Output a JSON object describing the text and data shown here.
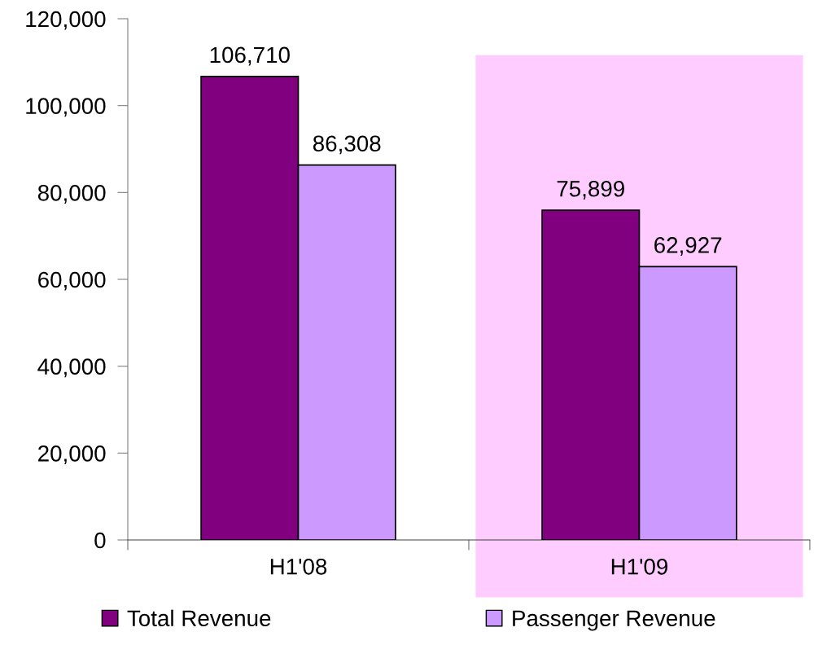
{
  "chart_data": {
    "type": "bar",
    "categories": [
      "H1'08",
      "H1'09"
    ],
    "series": [
      {
        "name": "Total Revenue",
        "color": "#800080",
        "values": [
          106710,
          75899
        ],
        "value_labels": [
          "106,710",
          "75,899"
        ]
      },
      {
        "name": "Passenger Revenue",
        "color": "#cc99ff",
        "values": [
          86308,
          62927
        ],
        "value_labels": [
          "86,308",
          "62,927"
        ]
      }
    ],
    "ylim": [
      0,
      120000
    ],
    "yticks": [
      {
        "value": 0,
        "label": "0"
      },
      {
        "value": 20000,
        "label": "20,000"
      },
      {
        "value": 40000,
        "label": "40,000"
      },
      {
        "value": 60000,
        "label": "60,000"
      },
      {
        "value": 80000,
        "label": "80,000"
      },
      {
        "value": 100000,
        "label": "100,000"
      },
      {
        "value": 120000,
        "label": "120,000"
      }
    ],
    "bands": [
      {
        "axis": "x",
        "from": "H1'09",
        "to": "H1'09",
        "color": "#ffccff"
      }
    ],
    "legend": "bottom"
  }
}
